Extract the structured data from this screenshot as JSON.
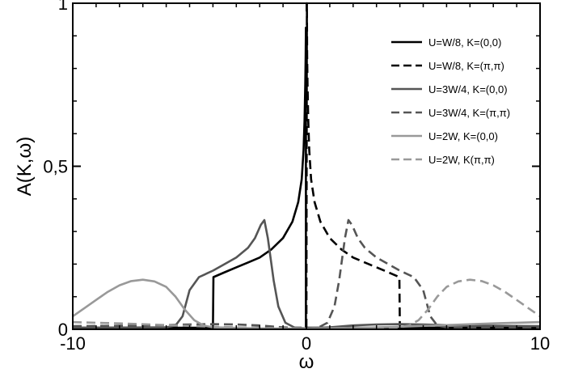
{
  "chart_data": {
    "type": "line",
    "xlabel": "ω",
    "ylabel": "A(K,ω)",
    "xlim": [
      -10,
      10
    ],
    "ylim": [
      0,
      1.0
    ],
    "xticks": [
      {
        "value": -10,
        "label": "-10"
      },
      {
        "value": 0,
        "label": "0"
      },
      {
        "value": 10,
        "label": "10"
      }
    ],
    "yticks": [
      {
        "value": 0,
        "label": "0"
      },
      {
        "value": 0.5,
        "label": "0,5"
      },
      {
        "value": 1,
        "label": "1"
      }
    ],
    "grid": false,
    "legend_position": "top-right",
    "series": [
      {
        "name": "U=W/8, K=(0,0)",
        "color": "#000000",
        "dash": "solid",
        "points": [
          [
            -10,
            0.005
          ],
          [
            -5,
            0.005
          ],
          [
            -4.2,
            0.005
          ],
          [
            -4,
            0.007
          ],
          [
            -3.98,
            0.16
          ],
          [
            -3.5,
            0.175
          ],
          [
            -3,
            0.19
          ],
          [
            -2.5,
            0.205
          ],
          [
            -2,
            0.22
          ],
          [
            -1.5,
            0.245
          ],
          [
            -1,
            0.28
          ],
          [
            -0.6,
            0.33
          ],
          [
            -0.35,
            0.39
          ],
          [
            -0.2,
            0.46
          ],
          [
            -0.12,
            0.55
          ],
          [
            -0.08,
            0.64
          ],
          [
            -0.05,
            0.75
          ],
          [
            -0.03,
            0.84
          ],
          [
            -0.02,
            0.925
          ],
          [
            -0.02,
            0.005
          ],
          [
            0,
            0.005
          ],
          [
            10,
            0.005
          ]
        ]
      },
      {
        "name": "U=W/8, K=(π,π)",
        "color": "#000000",
        "dash": "dashed",
        "points": [
          [
            -10,
            0.005
          ],
          [
            0,
            0.005
          ],
          [
            0.02,
            1.0
          ],
          [
            0.03,
            0.84
          ],
          [
            0.05,
            0.75
          ],
          [
            0.08,
            0.64
          ],
          [
            0.12,
            0.55
          ],
          [
            0.2,
            0.46
          ],
          [
            0.35,
            0.39
          ],
          [
            0.6,
            0.33
          ],
          [
            1,
            0.28
          ],
          [
            1.5,
            0.245
          ],
          [
            2,
            0.22
          ],
          [
            2.5,
            0.205
          ],
          [
            3,
            0.19
          ],
          [
            3.5,
            0.175
          ],
          [
            3.98,
            0.16
          ],
          [
            4,
            0.007
          ],
          [
            4.2,
            0.005
          ],
          [
            10,
            0.005
          ]
        ]
      },
      {
        "name": "U=3W/4, K=(0,0)",
        "color": "#555555",
        "dash": "solid",
        "points": [
          [
            -10,
            0.005
          ],
          [
            -6,
            0.006
          ],
          [
            -5.6,
            0.012
          ],
          [
            -5.3,
            0.04
          ],
          [
            -5,
            0.12
          ],
          [
            -4.6,
            0.16
          ],
          [
            -4,
            0.18
          ],
          [
            -3.5,
            0.2
          ],
          [
            -3,
            0.22
          ],
          [
            -2.5,
            0.25
          ],
          [
            -2.2,
            0.28
          ],
          [
            -1.95,
            0.32
          ],
          [
            -1.8,
            0.335
          ],
          [
            -1.65,
            0.28
          ],
          [
            -1.4,
            0.15
          ],
          [
            -1.2,
            0.07
          ],
          [
            -0.9,
            0.02
          ],
          [
            -0.5,
            0.005
          ],
          [
            0,
            0.003
          ],
          [
            1,
            0.006
          ],
          [
            2,
            0.012
          ],
          [
            3,
            0.015
          ],
          [
            4,
            0.016
          ],
          [
            5,
            0.015
          ],
          [
            6,
            0.013
          ],
          [
            7,
            0.012
          ],
          [
            8,
            0.011
          ],
          [
            10,
            0.01
          ]
        ]
      },
      {
        "name": "U=3W/4, K=(π,π)",
        "color": "#555555",
        "dash": "dashed",
        "points": [
          [
            -10,
            0.01
          ],
          [
            -8,
            0.011
          ],
          [
            -7,
            0.012
          ],
          [
            -6,
            0.013
          ],
          [
            -5,
            0.015
          ],
          [
            -4,
            0.016
          ],
          [
            -3,
            0.015
          ],
          [
            -2,
            0.012
          ],
          [
            -1,
            0.006
          ],
          [
            0,
            0.003
          ],
          [
            0.5,
            0.005
          ],
          [
            0.9,
            0.02
          ],
          [
            1.2,
            0.07
          ],
          [
            1.4,
            0.15
          ],
          [
            1.65,
            0.28
          ],
          [
            1.8,
            0.335
          ],
          [
            1.95,
            0.32
          ],
          [
            2.2,
            0.28
          ],
          [
            2.5,
            0.25
          ],
          [
            3,
            0.22
          ],
          [
            3.5,
            0.2
          ],
          [
            4,
            0.18
          ],
          [
            4.6,
            0.16
          ],
          [
            5,
            0.12
          ],
          [
            5.3,
            0.04
          ],
          [
            5.6,
            0.012
          ],
          [
            6,
            0.006
          ],
          [
            10,
            0.005
          ]
        ]
      },
      {
        "name": "U=2W, K=(0,0)",
        "color": "#999999",
        "dash": "solid",
        "points": [
          [
            -10,
            0.04
          ],
          [
            -9.5,
            0.065
          ],
          [
            -9,
            0.09
          ],
          [
            -8.5,
            0.115
          ],
          [
            -8,
            0.135
          ],
          [
            -7.5,
            0.148
          ],
          [
            -7,
            0.152
          ],
          [
            -6.5,
            0.147
          ],
          [
            -6,
            0.13
          ],
          [
            -5.6,
            0.1
          ],
          [
            -5.2,
            0.06
          ],
          [
            -4.8,
            0.028
          ],
          [
            -4.4,
            0.012
          ],
          [
            -4,
            0.006
          ],
          [
            -2,
            0.003
          ],
          [
            0,
            0.002
          ],
          [
            2,
            0.004
          ],
          [
            4,
            0.008
          ],
          [
            6,
            0.013
          ],
          [
            8,
            0.018
          ],
          [
            10,
            0.022
          ]
        ]
      },
      {
        "name": "U=2W, K(π,π)",
        "color": "#999999",
        "dash": "dashed",
        "points": [
          [
            -10,
            0.022
          ],
          [
            -8,
            0.018
          ],
          [
            -6,
            0.013
          ],
          [
            -4,
            0.008
          ],
          [
            -2,
            0.004
          ],
          [
            0,
            0.002
          ],
          [
            2,
            0.003
          ],
          [
            4,
            0.006
          ],
          [
            4.4,
            0.012
          ],
          [
            4.8,
            0.028
          ],
          [
            5.2,
            0.06
          ],
          [
            5.6,
            0.1
          ],
          [
            6,
            0.13
          ],
          [
            6.5,
            0.147
          ],
          [
            7,
            0.152
          ],
          [
            7.5,
            0.148
          ],
          [
            8,
            0.135
          ],
          [
            8.5,
            0.115
          ],
          [
            9,
            0.09
          ],
          [
            9.5,
            0.065
          ],
          [
            10,
            0.04
          ]
        ]
      }
    ]
  }
}
